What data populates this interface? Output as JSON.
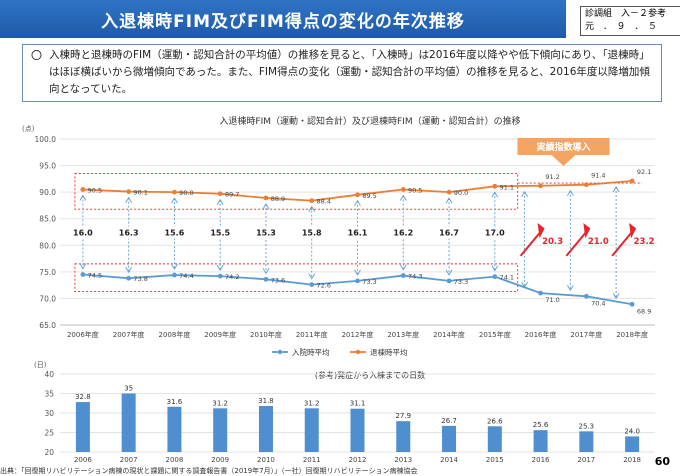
{
  "header": {
    "title": "入退棟時FIM及びFIM得点の変化の年次推移",
    "ref_line1": "診調組　入－２参考",
    "ref_line2": "元　．　９　．　５"
  },
  "summary": {
    "bullet": "〇",
    "text": "入棟時と退棟時のFIM（運動・認知合計の平均値）の推移を見ると、「入棟時」は2016年度以降やや低下傾向にあり、「退棟時」はほぼ横ばいから微増傾向であった。また、FIM得点の変化（運動・認知合計の平均値）の推移を見ると、2016年度以降増加傾向となっていた。"
  },
  "page_number": "60",
  "source": "出典：「回復期リハビリテーション病棟の現状と課題に関する調査報告書（2019年7月）」（一社）回復期リハビリテーション病棟協会",
  "colors": {
    "admission": "#5b9bd5",
    "discharge": "#ed7d31",
    "bar": "#4f8fd0",
    "highlight": "#e8242b",
    "callout": "#f4a460"
  },
  "chart_data": [
    {
      "type": "line",
      "title": "入退棟時FIM（運動・認知合計）及び退棟時FIM（運動・認知合計）の推移",
      "unit_label": "(点)",
      "categories": [
        "2006年度",
        "2007年度",
        "2008年度",
        "2009年度",
        "2010年度",
        "2011年度",
        "2012年度",
        "2013年度",
        "2014年度",
        "2015年度",
        "2016年度",
        "2017年度",
        "2018年度"
      ],
      "series": [
        {
          "name": "入院時平均",
          "values": [
            74.5,
            73.8,
            74.4,
            74.2,
            73.6,
            72.6,
            73.3,
            74.3,
            73.3,
            74.1,
            71.0,
            70.4,
            68.9
          ]
        },
        {
          "name": "退棟時平均",
          "values": [
            90.5,
            90.1,
            90.0,
            89.7,
            88.9,
            88.4,
            89.5,
            90.5,
            90.0,
            91.1,
            91.2,
            91.4,
            92.1
          ]
        }
      ],
      "differences": [
        16.0,
        16.3,
        15.6,
        15.5,
        15.3,
        15.8,
        16.1,
        16.2,
        16.7,
        17.0,
        20.3,
        21.0,
        23.2
      ],
      "ylim": [
        65.0,
        100.0
      ],
      "yticks": [
        65.0,
        70.0,
        75.0,
        80.0,
        85.0,
        90.0,
        95.0,
        100.0
      ],
      "callout": "実績指数導入",
      "legend_position": "bottom"
    },
    {
      "type": "bar",
      "title": "(参考)発症から入棟までの日数",
      "unit_label": "(日)",
      "categories": [
        "2006",
        "2007",
        "2008",
        "2009",
        "2010",
        "2011",
        "2012",
        "2013",
        "2014",
        "2015",
        "2016",
        "2017",
        "2018"
      ],
      "values": [
        32.8,
        35,
        31.6,
        31.2,
        31.8,
        31.2,
        31.1,
        27.9,
        26.7,
        26.6,
        25.6,
        25.3,
        24.0
      ],
      "value_labels": [
        "32.8",
        "35",
        "31.6",
        "31.2",
        "31.8",
        "31.2",
        "31.1",
        "27.9",
        "26.7",
        "26.6",
        "25.6",
        "25.3",
        "24.0"
      ],
      "ylim": [
        20,
        40
      ],
      "yticks": [
        20,
        25,
        30,
        35,
        40
      ]
    }
  ]
}
